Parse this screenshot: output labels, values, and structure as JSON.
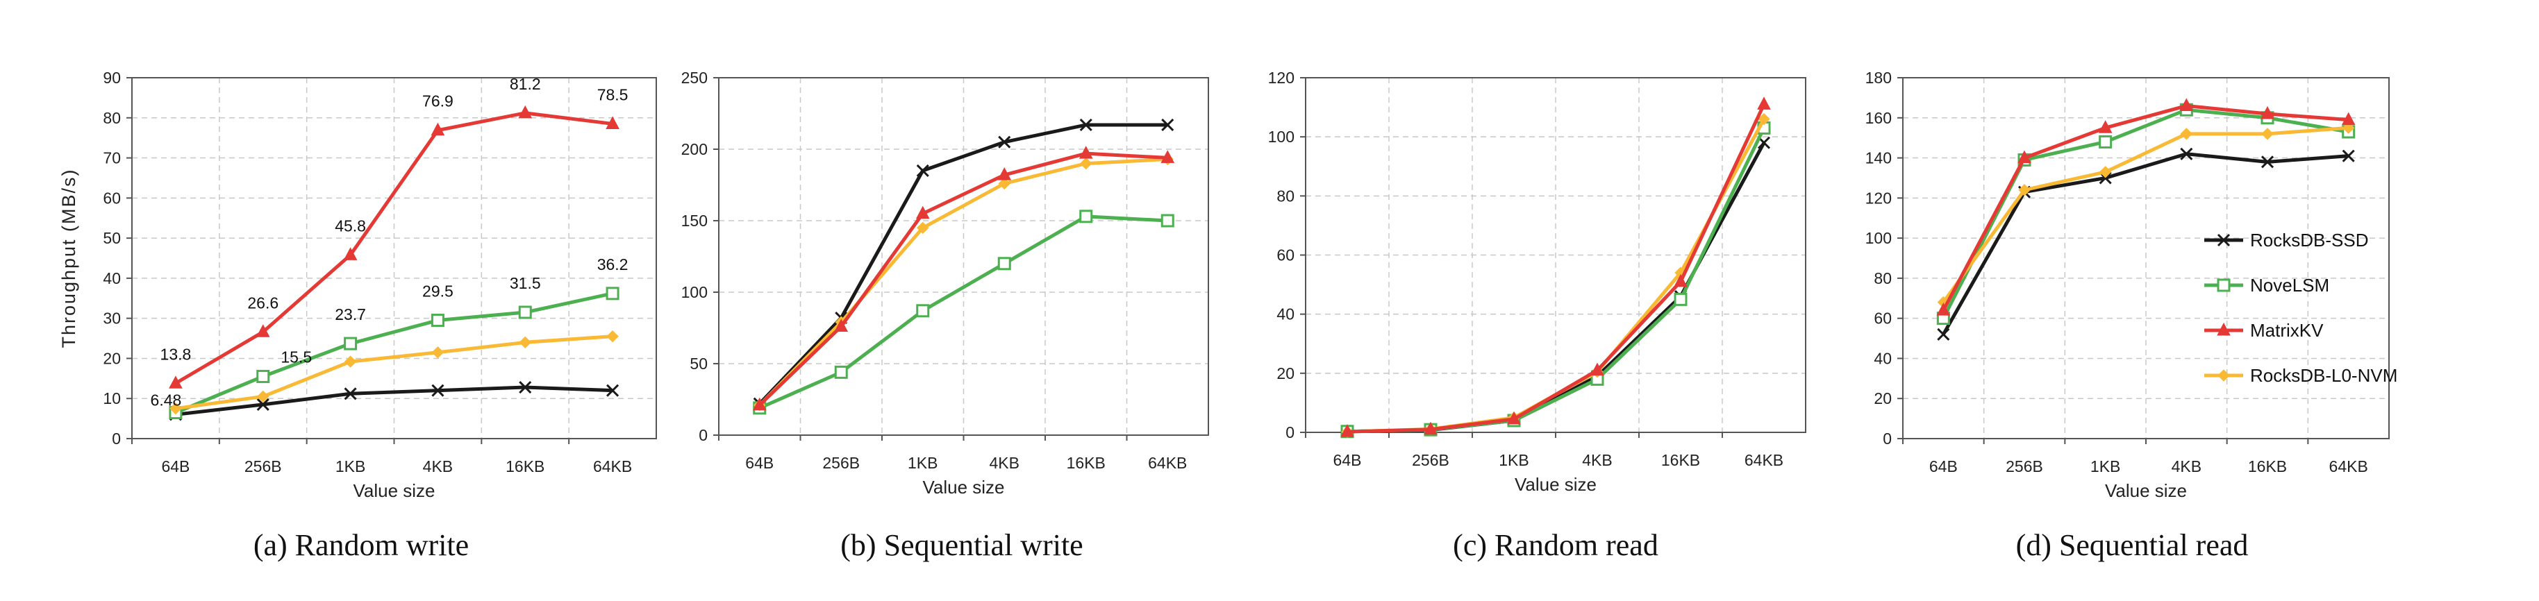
{
  "figure": {
    "series_styles": [
      {
        "name": "RocksDB-SSD",
        "color": "#1a1a1a",
        "marker": "x"
      },
      {
        "name": "NoveLSM",
        "color": "#4caf50",
        "marker": "square"
      },
      {
        "name": "MatrixKV",
        "color": "#e53935",
        "marker": "triangle"
      },
      {
        "name": "RocksDB-L0-NVM",
        "color": "#f9b934",
        "marker": "diamond"
      }
    ]
  },
  "chart_data": [
    {
      "type": "line",
      "caption": "(a)  Random write",
      "xlabel": "Value size",
      "ylabel": "Throughput (MB/s)",
      "categories": [
        "64B",
        "256B",
        "1KB",
        "4KB",
        "16KB",
        "64KB"
      ],
      "ylim": [
        0,
        90
      ],
      "yticks": [
        0,
        10,
        20,
        30,
        40,
        50,
        60,
        70,
        80,
        90
      ],
      "grid": true,
      "legend": "none",
      "series": [
        {
          "name": "RocksDB-SSD",
          "values": [
            6.0,
            8.5,
            11.2,
            12.0,
            12.8,
            12.0
          ]
        },
        {
          "name": "NoveLSM",
          "values": [
            6.48,
            15.5,
            23.7,
            29.5,
            31.5,
            36.2
          ]
        },
        {
          "name": "MatrixKV",
          "values": [
            13.8,
            26.6,
            45.8,
            76.9,
            81.2,
            78.5
          ]
        },
        {
          "name": "RocksDB-L0-NVM",
          "values": [
            7.5,
            10.5,
            19.2,
            21.5,
            24.0,
            25.5
          ]
        }
      ],
      "annotations": [
        {
          "text": "13.8",
          "series": 2,
          "index": 0
        },
        {
          "text": "26.6",
          "series": 2,
          "index": 1
        },
        {
          "text": "45.8",
          "series": 2,
          "index": 2
        },
        {
          "text": "76.9",
          "series": 2,
          "index": 3
        },
        {
          "text": "81.2",
          "series": 2,
          "index": 4
        },
        {
          "text": "78.5",
          "series": 2,
          "index": 5
        },
        {
          "text": "6.48",
          "series": 1,
          "index": 0
        },
        {
          "text": "15.5",
          "series": 1,
          "index": 1
        },
        {
          "text": "23.7",
          "series": 1,
          "index": 2
        },
        {
          "text": "29.5",
          "series": 1,
          "index": 3
        },
        {
          "text": "31.5",
          "series": 1,
          "index": 4
        },
        {
          "text": "36.2",
          "series": 1,
          "index": 5
        }
      ]
    },
    {
      "type": "line",
      "caption": "(b)  Sequential write",
      "xlabel": "Value size",
      "ylabel": "",
      "categories": [
        "64B",
        "256B",
        "1KB",
        "4KB",
        "16KB",
        "64KB"
      ],
      "ylim": [
        0,
        250
      ],
      "yticks": [
        0,
        50,
        100,
        150,
        200,
        250
      ],
      "grid": true,
      "legend": "none",
      "series": [
        {
          "name": "RocksDB-SSD",
          "values": [
            22,
            82,
            185,
            205,
            217,
            217
          ]
        },
        {
          "name": "NoveLSM",
          "values": [
            19,
            44,
            87,
            120,
            153,
            150
          ]
        },
        {
          "name": "MatrixKV",
          "values": [
            21,
            76,
            155,
            182,
            197,
            194
          ]
        },
        {
          "name": "RocksDB-L0-NVM",
          "values": [
            21,
            79,
            145,
            176,
            190,
            193
          ]
        }
      ],
      "annotations": []
    },
    {
      "type": "line",
      "caption": "(c)  Random read",
      "xlabel": "Value size",
      "ylabel": "",
      "categories": [
        "64B",
        "256B",
        "1KB",
        "4KB",
        "16KB",
        "64KB"
      ],
      "ylim": [
        0,
        120
      ],
      "yticks": [
        0,
        20,
        40,
        60,
        80,
        100,
        120
      ],
      "grid": true,
      "legend": "none",
      "series": [
        {
          "name": "RocksDB-SSD",
          "values": [
            0.3,
            0.8,
            4.0,
            19.0,
            46.0,
            98.0
          ]
        },
        {
          "name": "NoveLSM",
          "values": [
            0.3,
            0.9,
            4.0,
            18.0,
            45.0,
            103.0
          ]
        },
        {
          "name": "MatrixKV",
          "values": [
            0.2,
            1.0,
            4.5,
            21.0,
            51.0,
            111.0
          ]
        },
        {
          "name": "RocksDB-L0-NVM",
          "values": [
            0.2,
            1.1,
            5.0,
            20.5,
            54.0,
            106.0
          ]
        }
      ],
      "annotations": []
    },
    {
      "type": "line",
      "caption": "(d)  Sequential read",
      "xlabel": "Value size",
      "ylabel": "",
      "categories": [
        "64B",
        "256B",
        "1KB",
        "4KB",
        "16KB",
        "64KB"
      ],
      "ylim": [
        0,
        180
      ],
      "yticks": [
        0,
        20,
        40,
        60,
        80,
        100,
        120,
        140,
        160,
        180
      ],
      "grid": true,
      "legend": "right",
      "series": [
        {
          "name": "RocksDB-SSD",
          "values": [
            52,
            123,
            130,
            142,
            138,
            141
          ]
        },
        {
          "name": "NoveLSM",
          "values": [
            60,
            139,
            148,
            164,
            160,
            153
          ]
        },
        {
          "name": "MatrixKV",
          "values": [
            64,
            140,
            155,
            166,
            162,
            159
          ]
        },
        {
          "name": "RocksDB-L0-NVM",
          "values": [
            68,
            124,
            133,
            152,
            152,
            155
          ]
        }
      ],
      "annotations": []
    }
  ]
}
